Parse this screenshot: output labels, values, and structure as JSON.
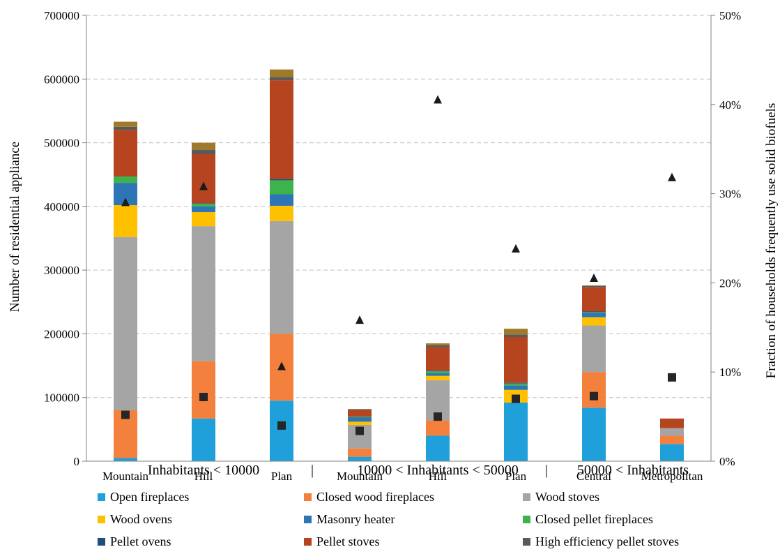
{
  "chart_data": {
    "type": "bar",
    "stacked": true,
    "categories": [
      "Mountain",
      "Hill",
      "Plan",
      "Mountain",
      "Hill",
      "Plan",
      "Central",
      "Metropolitan"
    ],
    "groups": [
      {
        "label": "Inhabitants < 10000",
        "start": 0,
        "end": 2
      },
      {
        "label": "10000 < Inhabitants < 50000",
        "start": 3,
        "end": 5
      },
      {
        "label": "50000 < Inhabitants",
        "start": 6,
        "end": 7
      }
    ],
    "group_separator": "|",
    "ylabel": "Number of residential appliance",
    "y2label": "Fraction of households frequently use solid biofuels",
    "ylim": [
      0,
      700000
    ],
    "y2lim": [
      0,
      0.5
    ],
    "yticks": [
      "0",
      "100000",
      "200000",
      "300000",
      "400000",
      "500000",
      "600000",
      "700000"
    ],
    "y2ticks": [
      "0%",
      "10%",
      "20%",
      "30%",
      "40%",
      "50%"
    ],
    "grid": "horizontal dashed",
    "legend_position": "bottom",
    "series": [
      {
        "name": "Open fireplaces",
        "color": "#1FA0DB",
        "values": [
          5000,
          67000,
          95000,
          7000,
          40000,
          92000,
          84000,
          27000
        ]
      },
      {
        "name": "Closed wood fireplaces",
        "color": "#F3813D",
        "values": [
          75000,
          90000,
          105000,
          13000,
          24000,
          0,
          56000,
          13000
        ]
      },
      {
        "name": "Wood stoves",
        "color": "#A5A5A5",
        "values": [
          272000,
          212000,
          177000,
          37000,
          63000,
          0,
          73000,
          12000
        ]
      },
      {
        "name": "Wood ovens",
        "color": "#FFC000",
        "values": [
          50000,
          22000,
          24000,
          5000,
          7000,
          20000,
          13000,
          0
        ]
      },
      {
        "name": "Masonry heater",
        "color": "#2E75B6",
        "values": [
          35000,
          9000,
          18000,
          7000,
          4000,
          7000,
          7000,
          0
        ]
      },
      {
        "name": "Closed pellet fireplaces",
        "color": "#3CB44B",
        "values": [
          10000,
          4000,
          22000,
          1000,
          3000,
          3000,
          1000,
          0
        ]
      },
      {
        "name": "Pellet ovens",
        "color": "#1F4E79",
        "values": [
          0,
          1000,
          2000,
          0,
          1000,
          1000,
          1000,
          0
        ]
      },
      {
        "name": "Pellet stoves",
        "color": "#B5441F",
        "values": [
          73000,
          77000,
          155000,
          10000,
          37000,
          72000,
          38000,
          15000
        ]
      },
      {
        "name": "High efficiency pellet stoves",
        "color": "#5A5A5A",
        "values": [
          5000,
          7000,
          5000,
          1000,
          3000,
          4000,
          2000,
          0
        ]
      },
      {
        "name": "",
        "color": "#9E7A2A",
        "values": [
          8000,
          11000,
          12000,
          1000,
          3000,
          9000,
          1000,
          0
        ]
      }
    ],
    "markers": [
      {
        "shape": "triangle",
        "axis": "right",
        "values": [
          0.29,
          0.308,
          0.106,
          0.158,
          0.405,
          0.238,
          0.205,
          0.318
        ]
      },
      {
        "shape": "square",
        "axis": "right",
        "values": [
          0.052,
          0.072,
          0.04,
          0.034,
          0.05,
          0.07,
          0.073,
          0.094
        ]
      }
    ]
  }
}
